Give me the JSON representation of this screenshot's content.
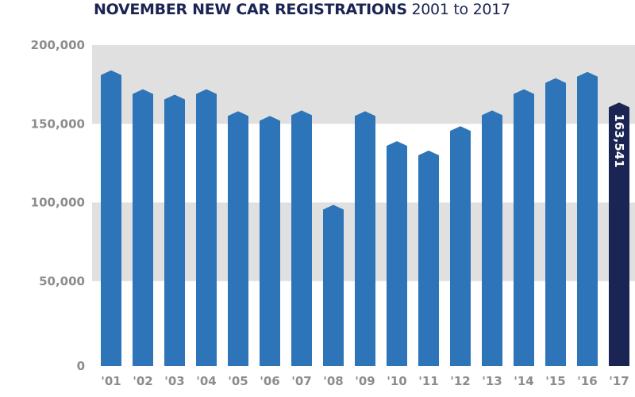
{
  "chart_data": {
    "type": "bar",
    "title": "NOVEMBER NEW CAR REGISTRATIONS",
    "subtitle": "2001 to 2017",
    "xlabel": "",
    "ylabel": "",
    "ylim": [
      0,
      200000
    ],
    "yticks": [
      0,
      50000,
      100000,
      150000,
      200000
    ],
    "ytick_labels": [
      "0",
      "50,000",
      "100,000",
      "150,000",
      "200,000"
    ],
    "grid": "alternating horizontal bands",
    "categories": [
      "'01",
      "'02",
      "'03",
      "'04",
      "'05",
      "'06",
      "'07",
      "'08",
      "'09",
      "'10",
      "'11",
      "'12",
      "'13",
      "'14",
      "'15",
      "'16",
      "'17"
    ],
    "values": [
      184000,
      172000,
      168500,
      172000,
      158000,
      155000,
      158500,
      98500,
      158000,
      139000,
      133000,
      148500,
      158500,
      172000,
      179000,
      183000,
      163541
    ],
    "highlight_index": 16,
    "data_labels": [
      {
        "index": 16,
        "text": "163,541"
      }
    ],
    "colors": {
      "bar": "#2e74b8",
      "highlight": "#1b2553",
      "band": "#e0e0e0",
      "axis_text": "#8c8c8c",
      "title": "#1b2553"
    }
  }
}
